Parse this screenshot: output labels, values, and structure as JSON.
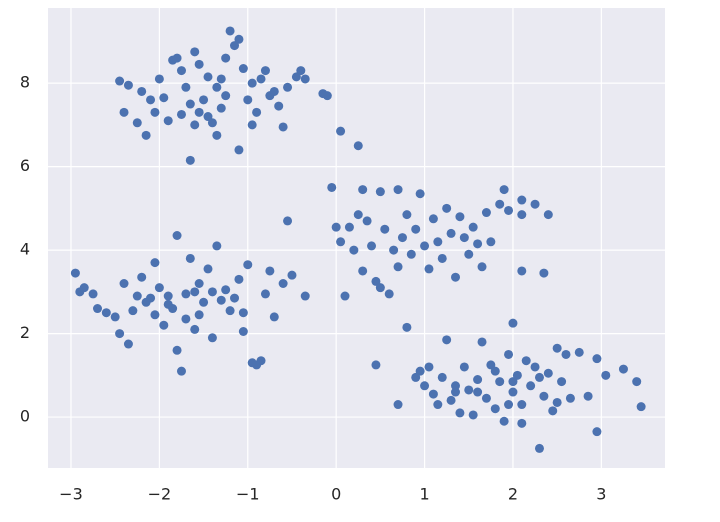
{
  "chart_data": {
    "type": "scatter",
    "color": "#4c72b0",
    "grid": true,
    "xlim": [
      -3.26,
      3.72
    ],
    "ylim": [
      -1.22,
      9.8
    ],
    "xticks": [
      {
        "value": -3,
        "label": "−3"
      },
      {
        "value": -2,
        "label": "−2"
      },
      {
        "value": -1,
        "label": "−1"
      },
      0,
      1,
      2,
      3
    ],
    "yticks": [
      0,
      2,
      4,
      6,
      8
    ],
    "x": [
      -2.45,
      -2.35,
      -2.2,
      -2.1,
      -2.4,
      -2.25,
      -2.15,
      -2.05,
      -1.95,
      -1.85,
      -1.8,
      -1.75,
      -1.7,
      -1.65,
      -1.6,
      -1.55,
      -1.5,
      -1.45,
      -1.4,
      -1.35,
      -1.65,
      -1.3,
      -1.25,
      -1.2,
      -1.15,
      -1.1,
      -1.05,
      -1.0,
      -0.95,
      -0.9,
      -0.85,
      -0.8,
      -0.75,
      -0.7,
      -0.65,
      -0.6,
      -0.45,
      -0.4,
      -0.35,
      -0.15,
      -0.1,
      0.05,
      0.25,
      -1.1,
      -0.95,
      -1.3,
      -1.55,
      -1.75,
      -1.9,
      -2.0,
      -1.45,
      -1.25,
      -1.35,
      -0.55,
      -1.6,
      -2.95,
      -2.9,
      -2.85,
      -2.75,
      -2.7,
      -2.6,
      -2.5,
      -2.45,
      -2.35,
      -2.4,
      -2.3,
      -2.2,
      -2.15,
      -2.1,
      -2.05,
      -2.0,
      -1.95,
      -1.9,
      -1.85,
      -1.8,
      -1.8,
      -1.75,
      -1.7,
      -1.65,
      -1.6,
      -1.55,
      -1.5,
      -1.45,
      -1.4,
      -1.35,
      -1.3,
      -1.25,
      -1.2,
      -1.1,
      -1.05,
      -1.0,
      -0.95,
      -0.9,
      -0.85,
      -0.8,
      -0.75,
      -0.7,
      -0.6,
      -0.55,
      -0.5,
      -0.35,
      -1.7,
      -1.9,
      -1.55,
      -2.25,
      -1.6,
      -1.15,
      -1.4,
      -1.05,
      -2.05,
      -0.05,
      0.0,
      0.05,
      0.1,
      0.15,
      0.2,
      0.25,
      0.3,
      0.3,
      0.35,
      0.4,
      0.45,
      0.5,
      0.5,
      0.55,
      0.6,
      0.65,
      0.7,
      0.7,
      0.75,
      0.8,
      0.85,
      0.9,
      0.95,
      1.0,
      1.05,
      1.1,
      1.15,
      1.2,
      1.25,
      1.3,
      1.35,
      1.4,
      1.45,
      1.5,
      1.55,
      1.6,
      1.65,
      1.7,
      1.75,
      1.85,
      1.9,
      1.95,
      2.1,
      2.1,
      2.1,
      2.25,
      2.35,
      2.4,
      0.8,
      0.45,
      0.7,
      0.9,
      0.95,
      1.0,
      1.05,
      1.1,
      1.2,
      1.25,
      1.3,
      1.35,
      1.4,
      1.45,
      1.5,
      1.55,
      1.6,
      1.65,
      1.7,
      1.75,
      1.8,
      1.85,
      1.9,
      1.95,
      2.0,
      2.0,
      2.05,
      2.1,
      2.1,
      2.15,
      2.2,
      2.25,
      2.3,
      2.35,
      2.4,
      2.45,
      2.5,
      2.55,
      2.6,
      2.65,
      2.75,
      2.85,
      2.95,
      2.95,
      3.05,
      3.25,
      3.4,
      3.45,
      1.6,
      1.8,
      2.0,
      2.3,
      1.35,
      2.5,
      1.15,
      1.95
    ],
    "y": [
      8.05,
      7.95,
      7.8,
      7.6,
      7.3,
      7.05,
      6.75,
      7.3,
      7.65,
      8.55,
      8.6,
      8.3,
      7.9,
      7.5,
      8.75,
      8.45,
      7.6,
      7.2,
      7.05,
      6.75,
      6.15,
      8.1,
      8.6,
      9.25,
      8.9,
      9.05,
      8.35,
      7.6,
      8.0,
      7.3,
      8.1,
      8.3,
      7.7,
      7.8,
      7.45,
      6.95,
      8.15,
      8.3,
      8.1,
      7.75,
      7.7,
      6.85,
      6.5,
      6.4,
      7.0,
      7.4,
      7.3,
      7.25,
      7.1,
      8.1,
      8.15,
      7.7,
      7.9,
      7.9,
      7.0,
      3.45,
      3.0,
      3.1,
      2.95,
      2.6,
      2.5,
      2.4,
      2.0,
      1.75,
      3.2,
      2.55,
      3.35,
      2.75,
      2.85,
      2.45,
      3.1,
      2.2,
      2.9,
      2.6,
      4.35,
      1.6,
      1.1,
      2.35,
      3.8,
      2.1,
      3.2,
      2.75,
      3.55,
      1.9,
      4.1,
      2.8,
      3.05,
      2.55,
      3.3,
      2.05,
      3.65,
      1.3,
      1.25,
      1.35,
      2.95,
      3.5,
      2.4,
      3.2,
      4.7,
      3.4,
      2.9,
      2.95,
      2.7,
      2.45,
      2.9,
      3.0,
      2.85,
      3.0,
      2.5,
      3.7,
      5.5,
      4.55,
      4.2,
      2.9,
      4.55,
      4.0,
      4.85,
      5.45,
      3.5,
      4.7,
      4.1,
      3.25,
      5.4,
      3.1,
      4.5,
      2.95,
      4.0,
      5.45,
      3.6,
      4.3,
      4.85,
      3.9,
      4.5,
      5.35,
      4.1,
      3.55,
      4.75,
      4.2,
      3.8,
      5.0,
      4.4,
      3.35,
      4.8,
      4.3,
      3.9,
      4.55,
      4.15,
      3.6,
      4.9,
      4.2,
      5.1,
      5.45,
      4.95,
      5.2,
      4.85,
      3.5,
      5.1,
      3.45,
      4.85,
      2.15,
      1.25,
      0.3,
      0.95,
      1.1,
      0.75,
      1.2,
      0.55,
      0.95,
      1.85,
      0.4,
      0.75,
      0.1,
      1.2,
      0.65,
      0.05,
      0.9,
      1.8,
      0.45,
      1.25,
      0.2,
      0.85,
      -0.1,
      1.5,
      0.6,
      2.25,
      1.0,
      0.3,
      -0.15,
      1.35,
      0.75,
      1.2,
      -0.75,
      0.5,
      1.05,
      0.15,
      1.65,
      0.85,
      1.5,
      0.45,
      1.55,
      0.5,
      1.4,
      -0.35,
      1.0,
      1.15,
      0.85,
      0.25,
      0.6,
      1.1,
      0.85,
      0.95,
      0.6,
      0.35,
      0.3,
      0.3
    ]
  }
}
